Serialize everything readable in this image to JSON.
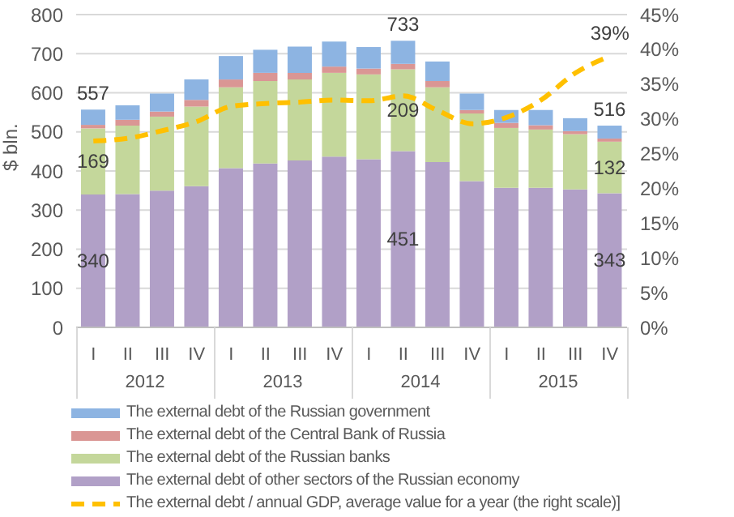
{
  "chart_data": {
    "type": "bar",
    "stacked": true,
    "ylabel": "$ bln.",
    "categories": [
      "I",
      "II",
      "III",
      "IV",
      "I",
      "II",
      "III",
      "IV",
      "I",
      "II",
      "III",
      "IV",
      "I",
      "II",
      "III",
      "IV"
    ],
    "annotations": [
      "2012",
      "2013",
      "2014",
      "2015"
    ],
    "series": [
      {
        "name": "The external debt of other sectors of the Russian economy",
        "color": "#b1a0c7",
        "values": [
          340,
          341,
          350,
          361,
          407,
          419,
          427,
          437,
          430,
          451,
          423,
          374,
          357,
          357,
          353,
          343
        ],
        "value_labels": [
          "340",
          null,
          null,
          null,
          null,
          null,
          null,
          null,
          null,
          "451",
          null,
          null,
          null,
          null,
          null,
          "343"
        ]
      },
      {
        "name": "The external debt of the Russian banks",
        "color": "#c4d79b",
        "values": [
          169,
          175,
          189,
          204,
          207,
          211,
          207,
          214,
          217,
          209,
          191,
          173,
          153,
          149,
          141,
          132
        ],
        "value_labels": [
          "169",
          null,
          null,
          null,
          null,
          null,
          null,
          null,
          null,
          "209",
          null,
          null,
          null,
          null,
          null,
          "132"
        ]
      },
      {
        "name": "The external debt of the Central Bank of Russia",
        "color": "#da9694",
        "values": [
          9,
          15,
          13,
          17,
          20,
          21,
          17,
          16,
          15,
          14,
          16,
          9,
          13,
          11,
          8,
          8
        ]
      },
      {
        "name": "The external debt of the Russian government",
        "color": "#8db4e2",
        "values": [
          39,
          37,
          46,
          52,
          60,
          59,
          67,
          64,
          55,
          59,
          50,
          42,
          33,
          39,
          33,
          33
        ]
      },
      {
        "name": "The external debt / annual GDP, average value for a year (the right scale)]",
        "type": "line",
        "axis": "y2",
        "color": "#ffc000",
        "line_style": "dashed",
        "marker": "none",
        "values": [
          26.8,
          27.2,
          28.3,
          29.6,
          31.8,
          32.2,
          32.4,
          32.7,
          32.6,
          33.3,
          31.2,
          29.3,
          30.2,
          32.7,
          36.6,
          39
        ],
        "value_labels": [
          null,
          null,
          null,
          null,
          null,
          null,
          null,
          null,
          null,
          null,
          null,
          null,
          null,
          null,
          null,
          "39%"
        ]
      }
    ],
    "totals": [
      "557",
      null,
      null,
      null,
      null,
      null,
      null,
      null,
      null,
      "733",
      null,
      null,
      null,
      null,
      null,
      "516"
    ],
    "ylim": [
      0,
      800
    ],
    "yticks": [
      0,
      100,
      200,
      300,
      400,
      500,
      600,
      700,
      800
    ],
    "y2lim": [
      0,
      45
    ],
    "y2ticks": [
      {
        "value": 0,
        "label": "0%"
      },
      {
        "value": 5,
        "label": "5%"
      },
      {
        "value": 10,
        "label": "10%"
      },
      {
        "value": 15,
        "label": "15%"
      },
      {
        "value": 20,
        "label": "20%"
      },
      {
        "value": 25,
        "label": "25%"
      },
      {
        "value": 30,
        "label": "30%"
      },
      {
        "value": 35,
        "label": "35%"
      },
      {
        "value": 40,
        "label": "40%"
      },
      {
        "value": 45,
        "label": "45%"
      }
    ],
    "grid": "y",
    "legend": "bottom"
  }
}
